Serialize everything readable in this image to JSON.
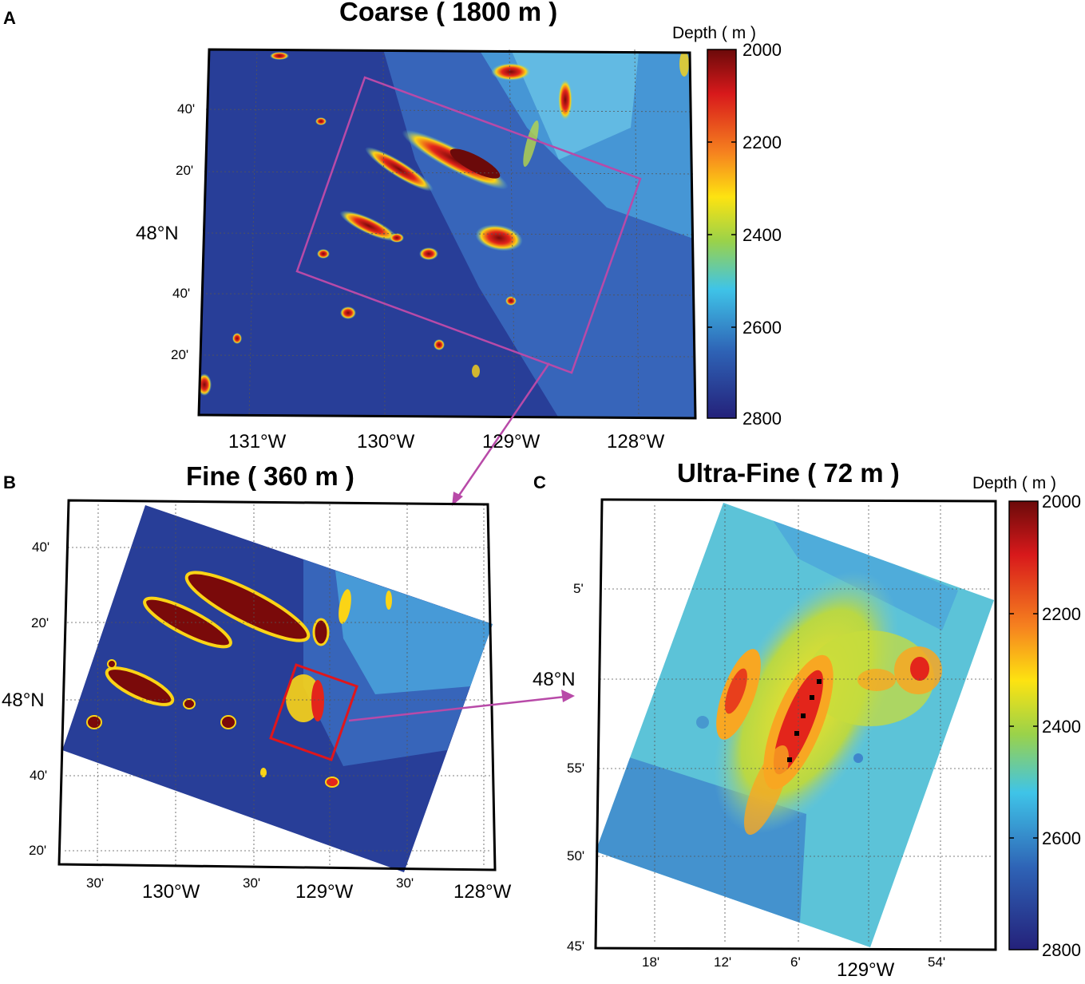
{
  "panels": {
    "a": {
      "letter": "A",
      "title": "Coarse ( 1800 m )",
      "lat_ticks": [
        "40'",
        "20'",
        "48°N",
        "40'",
        "20'"
      ],
      "lon_ticks": [
        "131°W",
        "130°W",
        "129°W",
        "128°W"
      ]
    },
    "b": {
      "letter": "B",
      "title": "Fine ( 360 m )",
      "lat_ticks": [
        "40'",
        "20'",
        "48°N",
        "40'",
        "20'"
      ],
      "lon_ticks": [
        "30'",
        "130°W",
        "30'",
        "129°W",
        "30'",
        "128°W"
      ]
    },
    "c": {
      "letter": "C",
      "title": "Ultra-Fine ( 72 m )",
      "lat_ticks": [
        "5'",
        "48°N",
        "55'",
        "50'",
        "45'"
      ],
      "lon_ticks": [
        "18'",
        "12'",
        "6'",
        "129°W",
        "54'"
      ]
    }
  },
  "colorbar": {
    "title": "Depth ( m )",
    "ticks": [
      "2000",
      "2200",
      "2400",
      "2600",
      "2800"
    ],
    "colors": [
      "#6b0a0a",
      "#e31a1c",
      "#fdd00f",
      "#9ad24a",
      "#3fc4e8",
      "#2e62b5",
      "#24217a"
    ]
  },
  "colors": {
    "nest_box_a": "#b84aa8",
    "nest_box_b": "#e0161b",
    "arrow": "#b84aa8",
    "deep": "#2a3f9a",
    "shallow": "#8a1010"
  }
}
